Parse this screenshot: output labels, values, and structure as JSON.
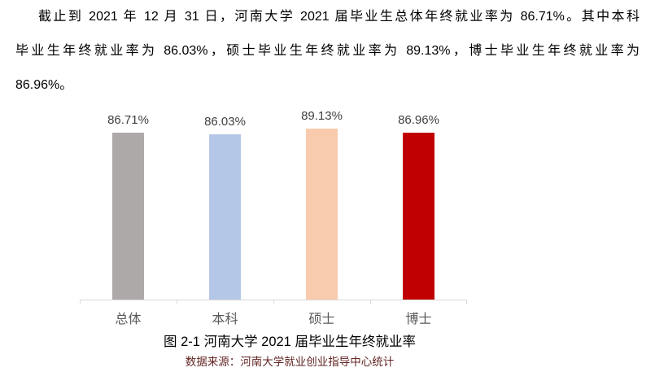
{
  "paragraph": {
    "lines": [
      "截止到 2021 年 12 月 31 日，河南大学 2021 届毕业生总体年终就业率为 86.71%。其中本科",
      "毕业生年终就业率为 86.03%，硕士毕业生年终就业率为 89.13%，博士毕业生年终就业率为",
      "86.96%。"
    ]
  },
  "chart_data": {
    "type": "bar",
    "title": "图 2-1 河南大学 2021 届毕业生年终就业率",
    "source": "数据来源：河南大学就业创业指导中心统计",
    "categories": [
      "总体",
      "本科",
      "硕士",
      "博士"
    ],
    "values": [
      86.71,
      86.03,
      89.13,
      86.96
    ],
    "value_labels": [
      "86.71%",
      "86.03%",
      "89.13%",
      "86.96%"
    ],
    "bar_colors": [
      "#aca9a8",
      "#b4c7e7",
      "#f8cbad",
      "#c00000"
    ],
    "axis_color": "#d9d9d9",
    "category_label_color": "#595959",
    "value_label_color": "#404040",
    "source_color": "#632423",
    "ylim": [
      0,
      100
    ],
    "xlabel": "",
    "ylabel": "",
    "grid": false,
    "legend": false
  }
}
